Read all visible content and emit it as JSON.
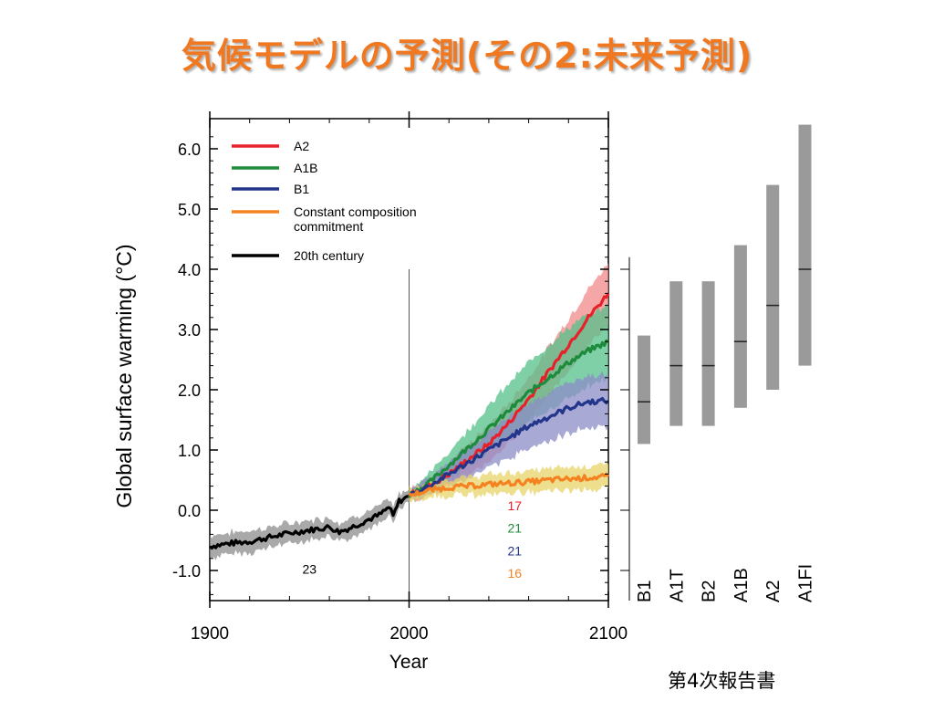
{
  "slide": {
    "title": "気候モデルの予測(その2:未来予測)",
    "source_note": "第4次報告書"
  },
  "chart_data": {
    "type": "line",
    "xlabel": "Year",
    "ylabel": "Global surface warming (°C)",
    "xlim": [
      1900,
      2100
    ],
    "ylim": [
      -1.5,
      6.5
    ],
    "x_ticks": [
      1900,
      2000,
      2100
    ],
    "y_ticks": [
      -1.0,
      0.0,
      1.0,
      2.0,
      3.0,
      4.0,
      5.0,
      6.0
    ],
    "y_tick_labels": [
      "-1.0",
      "0.0",
      "1.0",
      "2.0",
      "3.0",
      "4.0",
      "5.0",
      "6.0"
    ],
    "divider_year": 2000,
    "legend_position": "top-left",
    "legend": [
      {
        "label": "A2",
        "color": "#e8202a"
      },
      {
        "label": "A1B",
        "color": "#1e8a3c"
      },
      {
        "label": "B1",
        "color": "#22358a"
      },
      {
        "label": "Constant composition commitment",
        "color": "#f58220"
      },
      {
        "label": "20th century",
        "color": "#000000"
      }
    ],
    "series": [
      {
        "name": "20th century",
        "color": "#000000",
        "band_color": "#8c8c8c",
        "x": [
          1900,
          1910,
          1920,
          1930,
          1940,
          1950,
          1960,
          1965,
          1970,
          1980,
          1985,
          1990,
          1992,
          1995,
          2000
        ],
        "y": [
          -0.6,
          -0.55,
          -0.52,
          -0.45,
          -0.38,
          -0.33,
          -0.28,
          -0.36,
          -0.3,
          -0.15,
          -0.08,
          0.05,
          -0.1,
          0.15,
          0.23
        ],
        "band": [
          0.18,
          0.18,
          0.18,
          0.17,
          0.16,
          0.16,
          0.16,
          0.16,
          0.16,
          0.14,
          0.14,
          0.13,
          0.14,
          0.12,
          0.11
        ]
      },
      {
        "name": "A2",
        "color": "#e8202a",
        "band_color": "#f28a8a",
        "x": [
          2000,
          2010,
          2020,
          2030,
          2040,
          2050,
          2060,
          2070,
          2080,
          2090,
          2100
        ],
        "y": [
          0.25,
          0.4,
          0.6,
          0.85,
          1.1,
          1.45,
          1.85,
          2.3,
          2.75,
          3.2,
          3.6
        ],
        "band": [
          0.1,
          0.15,
          0.2,
          0.25,
          0.3,
          0.33,
          0.36,
          0.4,
          0.43,
          0.47,
          0.5
        ]
      },
      {
        "name": "A1B",
        "color": "#1e8a3c",
        "band_color": "#55c08a",
        "x": [
          2000,
          2010,
          2020,
          2030,
          2040,
          2050,
          2060,
          2070,
          2080,
          2090,
          2100
        ],
        "y": [
          0.25,
          0.45,
          0.75,
          1.05,
          1.35,
          1.65,
          1.95,
          2.2,
          2.45,
          2.65,
          2.8
        ],
        "band": [
          0.1,
          0.15,
          0.22,
          0.3,
          0.38,
          0.45,
          0.5,
          0.55,
          0.58,
          0.6,
          0.6
        ]
      },
      {
        "name": "B1",
        "color": "#22358a",
        "band_color": "#8c8cc8",
        "x": [
          2000,
          2010,
          2020,
          2030,
          2040,
          2050,
          2060,
          2070,
          2080,
          2090,
          2100
        ],
        "y": [
          0.25,
          0.4,
          0.6,
          0.8,
          1.0,
          1.2,
          1.4,
          1.55,
          1.7,
          1.8,
          1.82
        ],
        "band": [
          0.1,
          0.15,
          0.2,
          0.25,
          0.3,
          0.35,
          0.38,
          0.4,
          0.42,
          0.43,
          0.43
        ]
      },
      {
        "name": "Constant composition commitment",
        "color": "#f58220",
        "band_color": "#e8d46a",
        "x": [
          2000,
          2010,
          2020,
          2030,
          2040,
          2050,
          2060,
          2070,
          2080,
          2090,
          2100
        ],
        "y": [
          0.25,
          0.33,
          0.38,
          0.4,
          0.43,
          0.45,
          0.47,
          0.5,
          0.52,
          0.54,
          0.56
        ],
        "band": [
          0.1,
          0.12,
          0.14,
          0.15,
          0.16,
          0.17,
          0.18,
          0.19,
          0.2,
          0.2,
          0.2
        ]
      }
    ],
    "model_counts": [
      {
        "value": "23",
        "color": "#000000",
        "year": 1950,
        "y": -1.05
      },
      {
        "value": "17",
        "color": "#e8202a",
        "year": 2053,
        "y": -0.0
      },
      {
        "value": "21",
        "color": "#1e8a3c",
        "year": 2053,
        "y": -0.37
      },
      {
        "value": "21",
        "color": "#22358a",
        "year": 2053,
        "y": -0.75
      },
      {
        "value": "16",
        "color": "#f58220",
        "year": 2053,
        "y": -1.12
      }
    ],
    "range_bars": [
      {
        "label": "B1",
        "low": 1.1,
        "best": 1.8,
        "high": 2.9
      },
      {
        "label": "A1T",
        "low": 1.4,
        "best": 2.4,
        "high": 3.8
      },
      {
        "label": "B2",
        "low": 1.4,
        "best": 2.4,
        "high": 3.8
      },
      {
        "label": "A1B",
        "low": 1.7,
        "best": 2.8,
        "high": 4.4
      },
      {
        "label": "A2",
        "low": 2.0,
        "best": 3.4,
        "high": 5.4
      },
      {
        "label": "A1FI",
        "low": 2.4,
        "best": 4.0,
        "high": 6.4
      }
    ],
    "range_bar_color": "#9a9a9a"
  }
}
